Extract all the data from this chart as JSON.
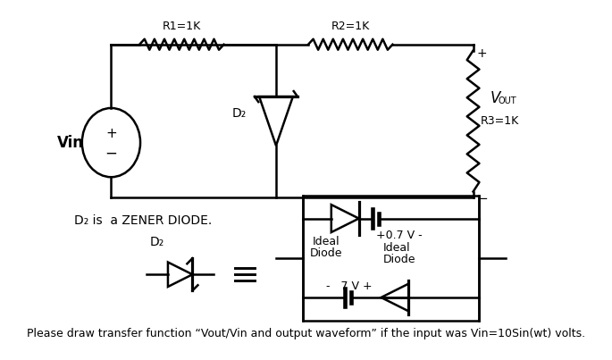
{
  "bg_color": "#ffffff",
  "title_text": "Please draw transfer function “Vout/Vin and output waveform” if the input was Vin=10Sin(wt) volts.",
  "dz_label": "D₂ is  a ZENER DIODE.",
  "dz_symbol_label": "D₂",
  "vin_label": "Vin",
  "r1_label": "R1=1K",
  "r2_label": "R2=1K",
  "r3_label": "R3=1K",
  "dz_circuit_label": "D₂",
  "vout_label": "V",
  "vout_sub": "OUT",
  "ideal_label": "Ideal",
  "diode_label": "Diode",
  "v07_label": "+ 0.7 V -",
  "v7_label": "-   7 V +",
  "plus_top": "+",
  "minus_bot": "-"
}
